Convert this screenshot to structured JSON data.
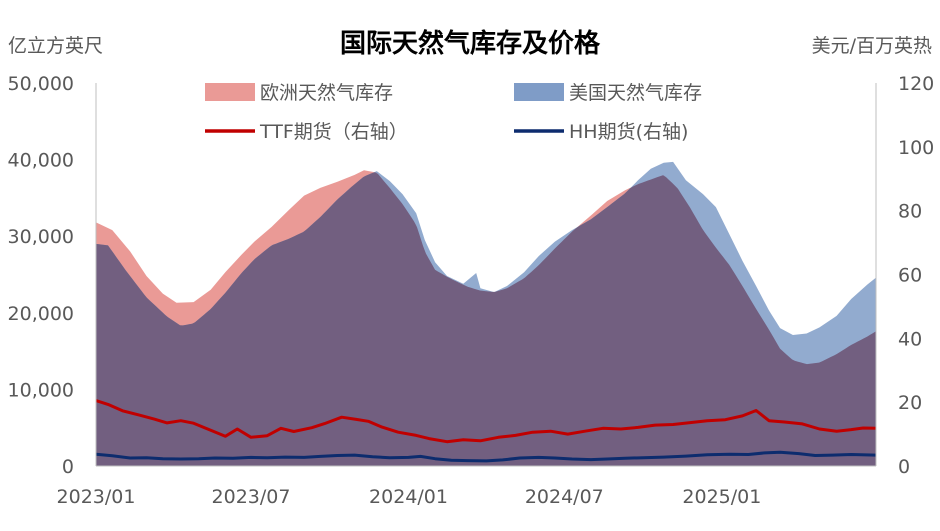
{
  "chart_data": {
    "type": "area",
    "title": "国际天然气库存及价格",
    "ylabel_left": "亿立方英尺",
    "ylabel_right": "美元/百万英热",
    "x_range": [
      "2023-01-01",
      "2025-06-30"
    ],
    "x_ticks": [
      "2023/01",
      "2023/07",
      "2024/01",
      "2024/07",
      "2025/01"
    ],
    "ylim_left": [
      0,
      50000
    ],
    "yticks_left": [
      "0",
      "10,000",
      "20,000",
      "30,000",
      "40,000",
      "50,000"
    ],
    "ylim_right": [
      0,
      120
    ],
    "yticks_right": [
      "0",
      "20",
      "40",
      "60",
      "80",
      "100",
      "120"
    ],
    "grid": false,
    "legend_position": "top",
    "series": [
      {
        "name": "欧洲天然气库存",
        "type": "area",
        "axis": "left",
        "color": "#EA9A96",
        "points": [
          [
            "2023-01-01",
            31800
          ],
          [
            "2023-01-20",
            30800
          ],
          [
            "2023-02-10",
            28000
          ],
          [
            "2023-03-01",
            24800
          ],
          [
            "2023-03-20",
            22500
          ],
          [
            "2023-04-05",
            21300
          ],
          [
            "2023-04-25",
            21400
          ],
          [
            "2023-05-15",
            23000
          ],
          [
            "2023-06-01",
            25300
          ],
          [
            "2023-06-20",
            27600
          ],
          [
            "2023-07-05",
            29300
          ],
          [
            "2023-07-25",
            31200
          ],
          [
            "2023-08-15",
            33500
          ],
          [
            "2023-09-01",
            35300
          ],
          [
            "2023-09-20",
            36300
          ],
          [
            "2023-10-10",
            37100
          ],
          [
            "2023-10-30",
            38000
          ],
          [
            "2023-11-10",
            38600
          ],
          [
            "2023-11-25",
            38300
          ],
          [
            "2023-12-10",
            36300
          ],
          [
            "2023-12-25",
            34200
          ],
          [
            "2024-01-10",
            31500
          ],
          [
            "2024-01-20",
            28000
          ],
          [
            "2024-02-01",
            25600
          ],
          [
            "2024-02-20",
            24400
          ],
          [
            "2024-03-10",
            23400
          ],
          [
            "2024-03-25",
            22900
          ],
          [
            "2024-04-10",
            22700
          ],
          [
            "2024-04-25",
            23200
          ],
          [
            "2024-05-15",
            24500
          ],
          [
            "2024-06-01",
            26200
          ],
          [
            "2024-06-20",
            28400
          ],
          [
            "2024-07-10",
            30600
          ],
          [
            "2024-08-01",
            32700
          ],
          [
            "2024-08-20",
            34600
          ],
          [
            "2024-09-10",
            36000
          ],
          [
            "2024-09-25",
            36800
          ],
          [
            "2024-10-10",
            37400
          ],
          [
            "2024-10-25",
            38000
          ],
          [
            "2024-11-10",
            36300
          ],
          [
            "2024-11-25",
            33700
          ],
          [
            "2024-12-10",
            30800
          ],
          [
            "2024-12-25",
            28500
          ],
          [
            "2025-01-10",
            26200
          ],
          [
            "2025-01-25",
            23500
          ],
          [
            "2025-02-10",
            20500
          ],
          [
            "2025-02-25",
            17800
          ],
          [
            "2025-03-10",
            15300
          ],
          [
            "2025-03-25",
            13800
          ],
          [
            "2025-04-10",
            13300
          ],
          [
            "2025-04-25",
            13500
          ],
          [
            "2025-05-15",
            14600
          ],
          [
            "2025-06-01",
            15800
          ],
          [
            "2025-06-20",
            16900
          ],
          [
            "2025-06-30",
            17600
          ]
        ]
      },
      {
        "name": "美国天然气库存",
        "type": "area",
        "axis": "left",
        "color": "#7F9CC7",
        "points": [
          [
            "2023-01-01",
            29000
          ],
          [
            "2023-01-15",
            28800
          ],
          [
            "2023-02-05",
            25500
          ],
          [
            "2023-03-01",
            22000
          ],
          [
            "2023-03-25",
            19500
          ],
          [
            "2023-04-10",
            18300
          ],
          [
            "2023-04-25",
            18600
          ],
          [
            "2023-05-15",
            20500
          ],
          [
            "2023-06-01",
            22600
          ],
          [
            "2023-06-20",
            25200
          ],
          [
            "2023-07-05",
            27000
          ],
          [
            "2023-07-25",
            28800
          ],
          [
            "2023-08-15",
            29700
          ],
          [
            "2023-09-01",
            30600
          ],
          [
            "2023-09-20",
            32500
          ],
          [
            "2023-10-10",
            34800
          ],
          [
            "2023-10-25",
            36300
          ],
          [
            "2023-11-10",
            37800
          ],
          [
            "2023-11-25",
            38500
          ],
          [
            "2023-12-10",
            37200
          ],
          [
            "2023-12-25",
            35500
          ],
          [
            "2024-01-10",
            33000
          ],
          [
            "2024-01-20",
            29500
          ],
          [
            "2024-02-01",
            26600
          ],
          [
            "2024-02-15",
            24800
          ],
          [
            "2024-03-05",
            23800
          ],
          [
            "2024-03-20",
            25200
          ],
          [
            "2024-03-25",
            23200
          ],
          [
            "2024-04-10",
            22700
          ],
          [
            "2024-04-25",
            23500
          ],
          [
            "2024-05-15",
            25300
          ],
          [
            "2024-06-01",
            27400
          ],
          [
            "2024-06-20",
            29300
          ],
          [
            "2024-07-10",
            30800
          ],
          [
            "2024-08-01",
            32200
          ],
          [
            "2024-08-20",
            33800
          ],
          [
            "2024-09-10",
            35600
          ],
          [
            "2024-09-25",
            37300
          ],
          [
            "2024-10-10",
            38800
          ],
          [
            "2024-10-25",
            39600
          ],
          [
            "2024-11-05",
            39700
          ],
          [
            "2024-11-20",
            37300
          ],
          [
            "2024-12-10",
            35500
          ],
          [
            "2024-12-25",
            33800
          ],
          [
            "2025-01-10",
            30200
          ],
          [
            "2025-01-25",
            26800
          ],
          [
            "2025-02-10",
            23500
          ],
          [
            "2025-02-25",
            20300
          ],
          [
            "2025-03-10",
            18000
          ],
          [
            "2025-03-25",
            17100
          ],
          [
            "2025-04-10",
            17300
          ],
          [
            "2025-04-25",
            18100
          ],
          [
            "2025-05-15",
            19600
          ],
          [
            "2025-06-01",
            21800
          ],
          [
            "2025-06-20",
            23700
          ],
          [
            "2025-06-30",
            24600
          ]
        ]
      },
      {
        "name": "TTF期货（右轴）",
        "type": "line",
        "axis": "right",
        "color": "#C00000",
        "points": [
          [
            "2023-01-01",
            20.5
          ],
          [
            "2023-01-15",
            19.3
          ],
          [
            "2023-02-01",
            17.3
          ],
          [
            "2023-02-20",
            16.0
          ],
          [
            "2023-03-10",
            14.7
          ],
          [
            "2023-03-25",
            13.5
          ],
          [
            "2023-04-10",
            14.2
          ],
          [
            "2023-04-25",
            13.4
          ],
          [
            "2023-05-15",
            11.2
          ],
          [
            "2023-06-01",
            9.3
          ],
          [
            "2023-06-15",
            11.6
          ],
          [
            "2023-07-01",
            9.0
          ],
          [
            "2023-07-20",
            9.5
          ],
          [
            "2023-08-05",
            11.8
          ],
          [
            "2023-08-20",
            10.8
          ],
          [
            "2023-09-10",
            12.0
          ],
          [
            "2023-09-25",
            13.3
          ],
          [
            "2023-10-15",
            15.3
          ],
          [
            "2023-11-01",
            14.6
          ],
          [
            "2023-11-15",
            14.0
          ],
          [
            "2023-12-01",
            12.2
          ],
          [
            "2023-12-20",
            10.6
          ],
          [
            "2024-01-10",
            9.6
          ],
          [
            "2024-01-25",
            8.6
          ],
          [
            "2024-02-15",
            7.6
          ],
          [
            "2024-03-05",
            8.2
          ],
          [
            "2024-03-25",
            7.9
          ],
          [
            "2024-04-15",
            9.0
          ],
          [
            "2024-05-05",
            9.6
          ],
          [
            "2024-05-25",
            10.6
          ],
          [
            "2024-06-15",
            10.9
          ],
          [
            "2024-07-05",
            10.0
          ],
          [
            "2024-07-25",
            10.9
          ],
          [
            "2024-08-15",
            11.8
          ],
          [
            "2024-09-05",
            11.6
          ],
          [
            "2024-09-25",
            12.1
          ],
          [
            "2024-10-15",
            12.8
          ],
          [
            "2024-11-05",
            13.0
          ],
          [
            "2024-11-25",
            13.6
          ],
          [
            "2024-12-15",
            14.2
          ],
          [
            "2025-01-05",
            14.5
          ],
          [
            "2025-01-25",
            15.7
          ],
          [
            "2025-02-10",
            17.4
          ],
          [
            "2025-02-25",
            14.2
          ],
          [
            "2025-03-15",
            13.8
          ],
          [
            "2025-04-05",
            13.2
          ],
          [
            "2025-04-25",
            11.6
          ],
          [
            "2025-05-15",
            10.9
          ],
          [
            "2025-06-01",
            11.4
          ],
          [
            "2025-06-15",
            11.9
          ],
          [
            "2025-06-30",
            11.8
          ]
        ]
      },
      {
        "name": "HH期货(右轴)",
        "type": "line",
        "axis": "right",
        "color": "#0D2C6E",
        "points": [
          [
            "2023-01-01",
            3.7
          ],
          [
            "2023-01-20",
            3.2
          ],
          [
            "2023-02-10",
            2.5
          ],
          [
            "2023-03-01",
            2.6
          ],
          [
            "2023-03-20",
            2.3
          ],
          [
            "2023-04-10",
            2.2
          ],
          [
            "2023-05-01",
            2.3
          ],
          [
            "2023-05-20",
            2.5
          ],
          [
            "2023-06-10",
            2.4
          ],
          [
            "2023-07-01",
            2.7
          ],
          [
            "2023-07-20",
            2.6
          ],
          [
            "2023-08-10",
            2.8
          ],
          [
            "2023-09-01",
            2.7
          ],
          [
            "2023-09-20",
            3.0
          ],
          [
            "2023-10-10",
            3.3
          ],
          [
            "2023-10-30",
            3.4
          ],
          [
            "2023-11-20",
            2.9
          ],
          [
            "2023-12-10",
            2.6
          ],
          [
            "2024-01-01",
            2.7
          ],
          [
            "2024-01-15",
            3.0
          ],
          [
            "2024-02-01",
            2.3
          ],
          [
            "2024-02-20",
            1.8
          ],
          [
            "2024-03-10",
            1.7
          ],
          [
            "2024-04-01",
            1.6
          ],
          [
            "2024-04-20",
            1.9
          ],
          [
            "2024-05-10",
            2.5
          ],
          [
            "2024-06-01",
            2.7
          ],
          [
            "2024-06-20",
            2.5
          ],
          [
            "2024-07-10",
            2.2
          ],
          [
            "2024-08-01",
            2.0
          ],
          [
            "2024-08-20",
            2.2
          ],
          [
            "2024-09-10",
            2.4
          ],
          [
            "2024-10-01",
            2.6
          ],
          [
            "2024-10-25",
            2.8
          ],
          [
            "2024-11-20",
            3.1
          ],
          [
            "2024-12-15",
            3.5
          ],
          [
            "2025-01-10",
            3.7
          ],
          [
            "2025-02-01",
            3.6
          ],
          [
            "2025-02-20",
            4.1
          ],
          [
            "2025-03-10",
            4.3
          ],
          [
            "2025-04-01",
            3.9
          ],
          [
            "2025-04-20",
            3.3
          ],
          [
            "2025-05-10",
            3.4
          ],
          [
            "2025-06-01",
            3.6
          ],
          [
            "2025-06-30",
            3.4
          ]
        ]
      }
    ]
  }
}
